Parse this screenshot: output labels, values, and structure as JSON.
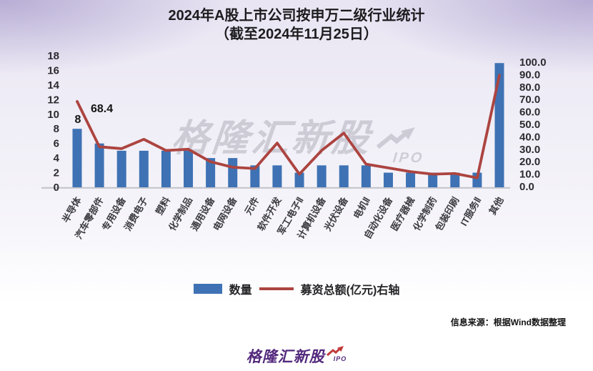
{
  "title": {
    "line1": "2024年A股上市公司按申万二级行业统计",
    "line2": "（截至2024年11月25日）"
  },
  "watermark": {
    "text": "格隆汇新股",
    "badge": "IPO"
  },
  "legend": {
    "items": [
      {
        "label": "数量",
        "marker": "bar-swatch"
      },
      {
        "label": "募资总额(亿元)右轴",
        "marker": "line-swatch"
      }
    ]
  },
  "footer": {
    "source_note": "信息来源：根据Wind数据整理",
    "logo_text": "格隆汇新股",
    "logo_badge": "IPO"
  },
  "colors": {
    "bar": "#3E72B4",
    "line": "#AC4440",
    "logo_purple": "#53297d",
    "arrow_red": "#C13B3B",
    "axis_line": "#c5c4cc"
  },
  "chart_data": {
    "type": "combo: bar + line (secondary axis)",
    "title": "2024年A股上市公司按申万二级行业统计（截至2024年11月25日）",
    "categories": [
      "半导体",
      "汽车零部件",
      "专用设备",
      "消费电子",
      "塑料",
      "化学制品",
      "通用设备",
      "电网设备",
      "元件",
      "软件开发",
      "军工电子Ⅱ",
      "计算机设备",
      "光伏设备",
      "电机Ⅱ",
      "自动化设备",
      "医疗器械",
      "化学制药",
      "包装印刷",
      "IT服务Ⅱ",
      "其他"
    ],
    "series": [
      {
        "name": "数量",
        "type": "bar",
        "axis": "left",
        "values": [
          8,
          6,
          5,
          5,
          5,
          5,
          4,
          4,
          3,
          3,
          2,
          3,
          3,
          3,
          2,
          2,
          2,
          2,
          2,
          17
        ]
      },
      {
        "name": "募资总额(亿元)右轴",
        "type": "line",
        "axis": "right",
        "values": [
          68.4,
          32,
          30.5,
          38,
          29,
          30,
          20,
          15.5,
          14.5,
          35,
          10,
          29,
          43,
          18,
          15,
          12,
          10,
          10.5,
          7,
          89.5
        ]
      }
    ],
    "data_labels": [
      {
        "series": "数量",
        "category": "半导体",
        "text": "8"
      },
      {
        "series": "募资总额(亿元)右轴",
        "category": "半导体",
        "text": "68.4"
      }
    ],
    "left_axis": {
      "min": 0,
      "max": 18,
      "step": 2,
      "ticks": [
        18,
        16,
        14,
        12,
        10,
        8,
        6,
        4,
        2,
        0
      ]
    },
    "right_axis": {
      "min": 0,
      "max": 100,
      "step": 10,
      "ticks": [
        "100.0",
        "90.0",
        "80.0",
        "70.0",
        "60.0",
        "50.0",
        "40.0",
        "30.0",
        "20.0",
        "10.0",
        "0.0"
      ]
    },
    "gridlines": false,
    "legend_position": "bottom",
    "category_label_rotation_deg": -60
  }
}
